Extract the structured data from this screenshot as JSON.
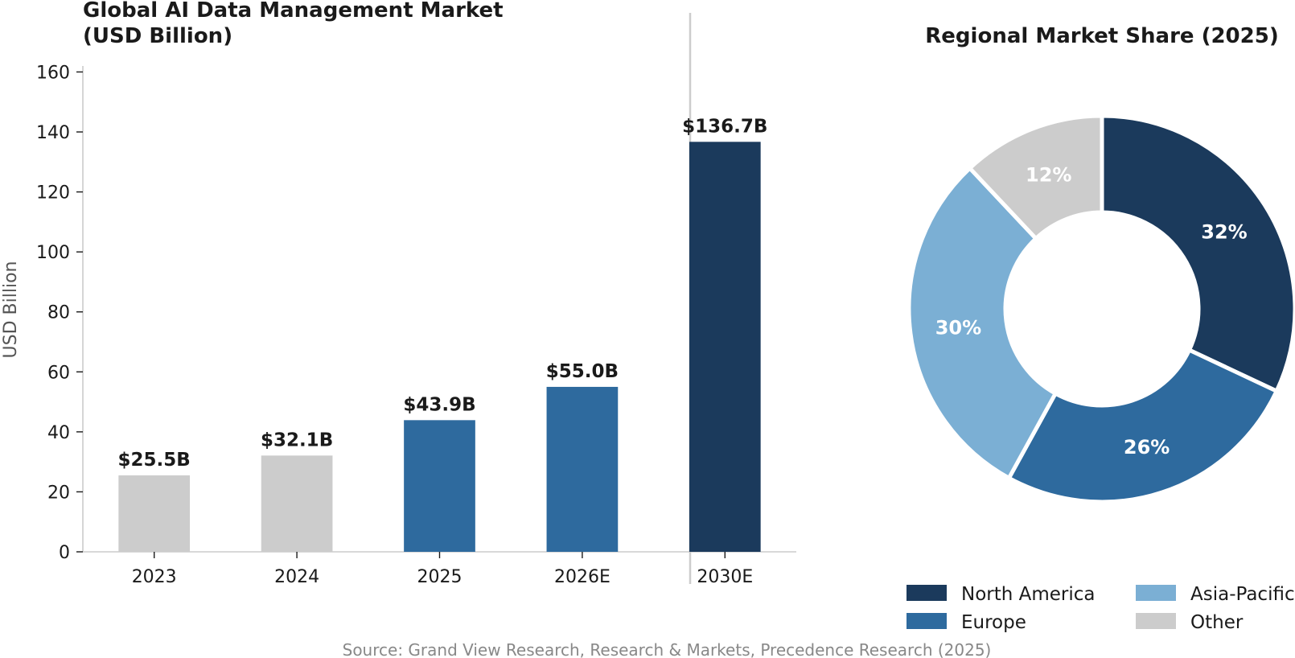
{
  "chart_data": [
    {
      "type": "bar",
      "title_lines": [
        "Global AI Data Management Market",
        "(USD Billion)"
      ],
      "ylabel": "USD Billion",
      "categories": [
        "2023",
        "2024",
        "2025",
        "2026E",
        "2030E"
      ],
      "values": [
        25.5,
        32.1,
        43.9,
        55.0,
        136.7
      ],
      "data_labels": [
        "$25.5B",
        "$32.1B",
        "$43.9B",
        "$55.0B",
        "$136.7B"
      ],
      "bar_colors": [
        "#cccccc",
        "#cccccc",
        "#2e6a9e",
        "#2e6a9e",
        "#1b3a5c"
      ],
      "ylim": [
        0,
        162
      ],
      "yticks": [
        0,
        20,
        40,
        60,
        80,
        100,
        120,
        140,
        160
      ],
      "grid": false
    },
    {
      "type": "pie",
      "title": "Regional Market Share (2025)",
      "donut": true,
      "slices": [
        {
          "name": "North America",
          "value": 32,
          "label": "32%",
          "color": "#1b3a5c"
        },
        {
          "name": "Europe",
          "value": 26,
          "label": "26%",
          "color": "#2e6a9e"
        },
        {
          "name": "Asia-Pacific",
          "value": 30,
          "label": "30%",
          "color": "#7bafd4"
        },
        {
          "name": "Other",
          "value": 12,
          "label": "12%",
          "color": "#cccccc"
        }
      ],
      "legend_placement": "bottom",
      "legend_order": [
        "North America",
        "Asia-Pacific",
        "Europe",
        "Other"
      ]
    }
  ],
  "source_note": "Source: Grand View Research, Research & Markets, Precedence Research (2025)"
}
